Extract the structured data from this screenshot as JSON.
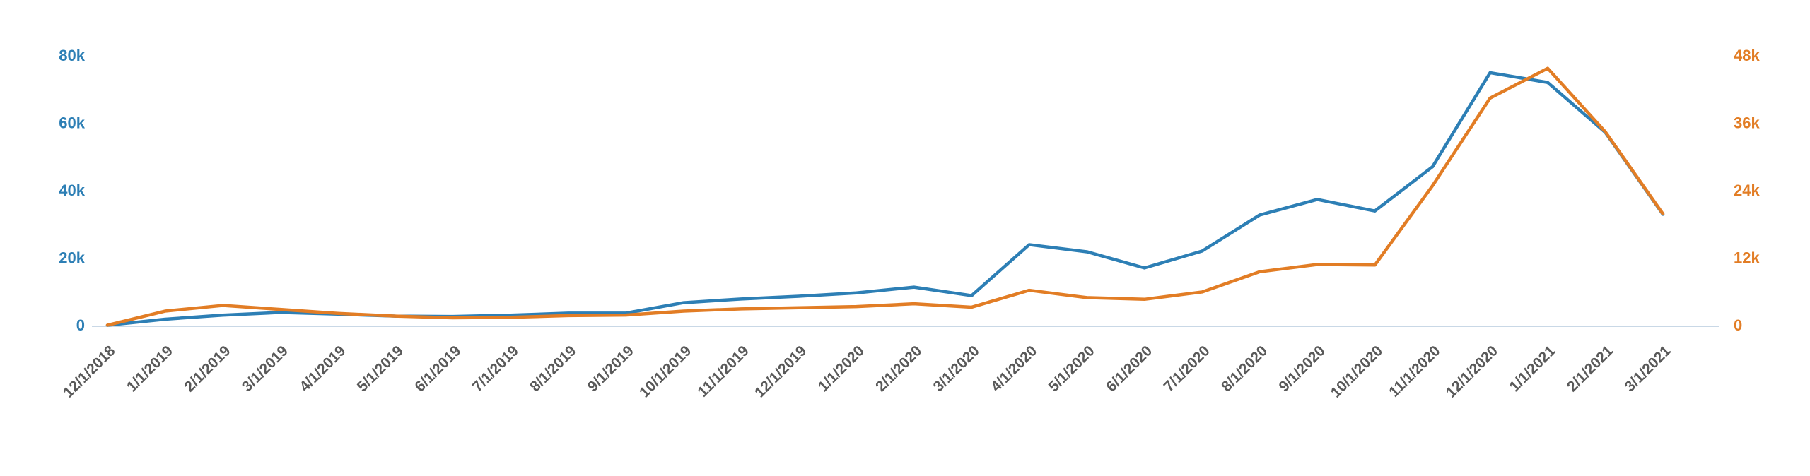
{
  "chart_data": {
    "type": "line",
    "title": "",
    "legend": "none",
    "grid": "baseline-only",
    "x": [
      "12/1/2018",
      "1/1/2019",
      "2/1/2019",
      "3/1/2019",
      "4/1/2019",
      "5/1/2019",
      "6/1/2019",
      "7/1/2019",
      "8/1/2019",
      "9/1/2019",
      "10/1/2019",
      "11/1/2019",
      "12/1/2019",
      "1/1/2020",
      "2/1/2020",
      "3/1/2020",
      "4/1/2020",
      "5/1/2020",
      "6/1/2020",
      "7/1/2020",
      "8/1/2020",
      "9/1/2020",
      "10/1/2020",
      "11/1/2020",
      "12/1/2020",
      "1/1/2021",
      "2/1/2021",
      "3/1/2021"
    ],
    "left_axis": {
      "min": 0,
      "max": 80000,
      "color": "#2d7fb5",
      "ticks": [
        {
          "label": "0",
          "value": 0
        },
        {
          "label": "20k",
          "value": 20000
        },
        {
          "label": "40k",
          "value": 40000
        },
        {
          "label": "60k",
          "value": 60000
        },
        {
          "label": "80k",
          "value": 80000
        }
      ]
    },
    "right_axis": {
      "min": 0,
      "max": 48000,
      "color": "#e27d25",
      "ticks": [
        {
          "label": "0",
          "value": 0
        },
        {
          "label": "12k",
          "value": 12000
        },
        {
          "label": "24k",
          "value": 24000
        },
        {
          "label": "36k",
          "value": 36000
        },
        {
          "label": "48k",
          "value": 48000
        }
      ]
    },
    "series": [
      {
        "name": "blue-series",
        "axis": "left",
        "color": "#2d7fb5",
        "values": [
          300,
          2100,
          3300,
          4100,
          3600,
          3000,
          2900,
          3300,
          3900,
          3900,
          7000,
          8100,
          8900,
          9900,
          11600,
          9100,
          24200,
          22100,
          17300,
          22300,
          33000,
          37600,
          34200,
          47300,
          75200,
          72300,
          57500,
          33200
        ]
      },
      {
        "name": "orange-series",
        "axis": "right",
        "color": "#e27d25",
        "values": [
          200,
          2700,
          3700,
          3000,
          2300,
          1800,
          1500,
          1600,
          1900,
          2000,
          2700,
          3100,
          3300,
          3500,
          4000,
          3400,
          6400,
          5100,
          4800,
          6100,
          9700,
          11000,
          10900,
          25000,
          40600,
          45900,
          34600,
          20000
        ]
      }
    ]
  },
  "style": {
    "baseline_color": "#c9d8e6",
    "x_label_color": "#595959",
    "background": "#ffffff"
  }
}
